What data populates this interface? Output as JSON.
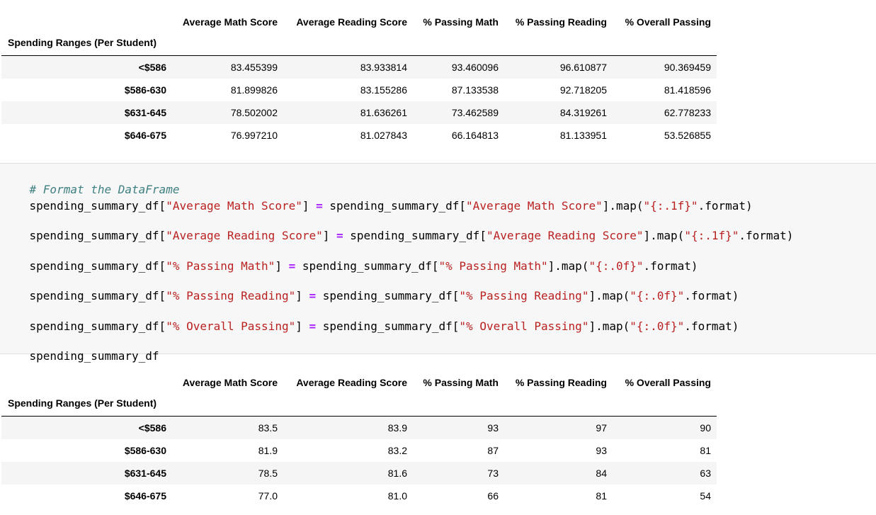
{
  "table_top": {
    "columns": [
      "Average Math Score",
      "Average Reading Score",
      "% Passing Math",
      "% Passing Reading",
      "% Overall Passing"
    ],
    "index_name": "Spending Ranges (Per Student)",
    "rows": [
      {
        "index": "<$586",
        "values": [
          "83.455399",
          "83.933814",
          "93.460096",
          "96.610877",
          "90.369459"
        ]
      },
      {
        "index": "$586-630",
        "values": [
          "81.899826",
          "83.155286",
          "87.133538",
          "92.718205",
          "81.418596"
        ]
      },
      {
        "index": "$631-645",
        "values": [
          "78.502002",
          "81.636261",
          "73.462589",
          "84.319261",
          "62.778233"
        ]
      },
      {
        "index": "$646-675",
        "values": [
          "76.997210",
          "81.027843",
          "66.164813",
          "81.133951",
          "53.526855"
        ]
      }
    ]
  },
  "code": {
    "comment": "# Format the DataFrame",
    "lines": [
      {
        "var": "spending_summary_df[",
        "key": "\"Average Math Score\"",
        "mid": "] ",
        "op": "=",
        "rhs_var": " spending_summary_df[",
        "rhs_key": "\"Average Math Score\"",
        "map": "].map(",
        "fmt": "\"{:.1f}\"",
        "tail": ".format)"
      },
      {
        "var": "spending_summary_df[",
        "key": "\"Average Reading Score\"",
        "mid": "] ",
        "op": "=",
        "rhs_var": " spending_summary_df[",
        "rhs_key": "\"Average Reading Score\"",
        "map": "].map(",
        "fmt": "\"{:.1f}\"",
        "tail": ".format)"
      },
      {
        "var": "spending_summary_df[",
        "key": "\"% Passing Math\"",
        "mid": "] ",
        "op": "=",
        "rhs_var": " spending_summary_df[",
        "rhs_key": "\"% Passing Math\"",
        "map": "].map(",
        "fmt": "\"{:.0f}\"",
        "tail": ".format)"
      },
      {
        "var": "spending_summary_df[",
        "key": "\"% Passing Reading\"",
        "mid": "] ",
        "op": "=",
        "rhs_var": " spending_summary_df[",
        "rhs_key": "\"% Passing Reading\"",
        "map": "].map(",
        "fmt": "\"{:.0f}\"",
        "tail": ".format)"
      },
      {
        "var": "spending_summary_df[",
        "key": "\"% Overall Passing\"",
        "mid": "] ",
        "op": "=",
        "rhs_var": " spending_summary_df[",
        "rhs_key": "\"% Overall Passing\"",
        "map": "].map(",
        "fmt": "\"{:.0f}\"",
        "tail": ".format)"
      }
    ],
    "last_line": "spending_summary_df"
  },
  "table_bottom": {
    "columns": [
      "Average Math Score",
      "Average Reading Score",
      "% Passing Math",
      "% Passing Reading",
      "% Overall Passing"
    ],
    "index_name": "Spending Ranges (Per Student)",
    "rows": [
      {
        "index": "<$586",
        "values": [
          "83.5",
          "83.9",
          "93",
          "97",
          "90"
        ]
      },
      {
        "index": "$586-630",
        "values": [
          "81.9",
          "83.2",
          "87",
          "93",
          "81"
        ]
      },
      {
        "index": "$631-645",
        "values": [
          "78.5",
          "81.6",
          "73",
          "84",
          "63"
        ]
      },
      {
        "index": "$646-675",
        "values": [
          "77.0",
          "81.0",
          "66",
          "81",
          "54"
        ]
      }
    ]
  },
  "colors": {
    "comment": "#408080",
    "string": "#ba2121",
    "operator": "#aa22ff",
    "code_bg": "#f7f7f7",
    "row_stripe": "#f5f5f5"
  }
}
